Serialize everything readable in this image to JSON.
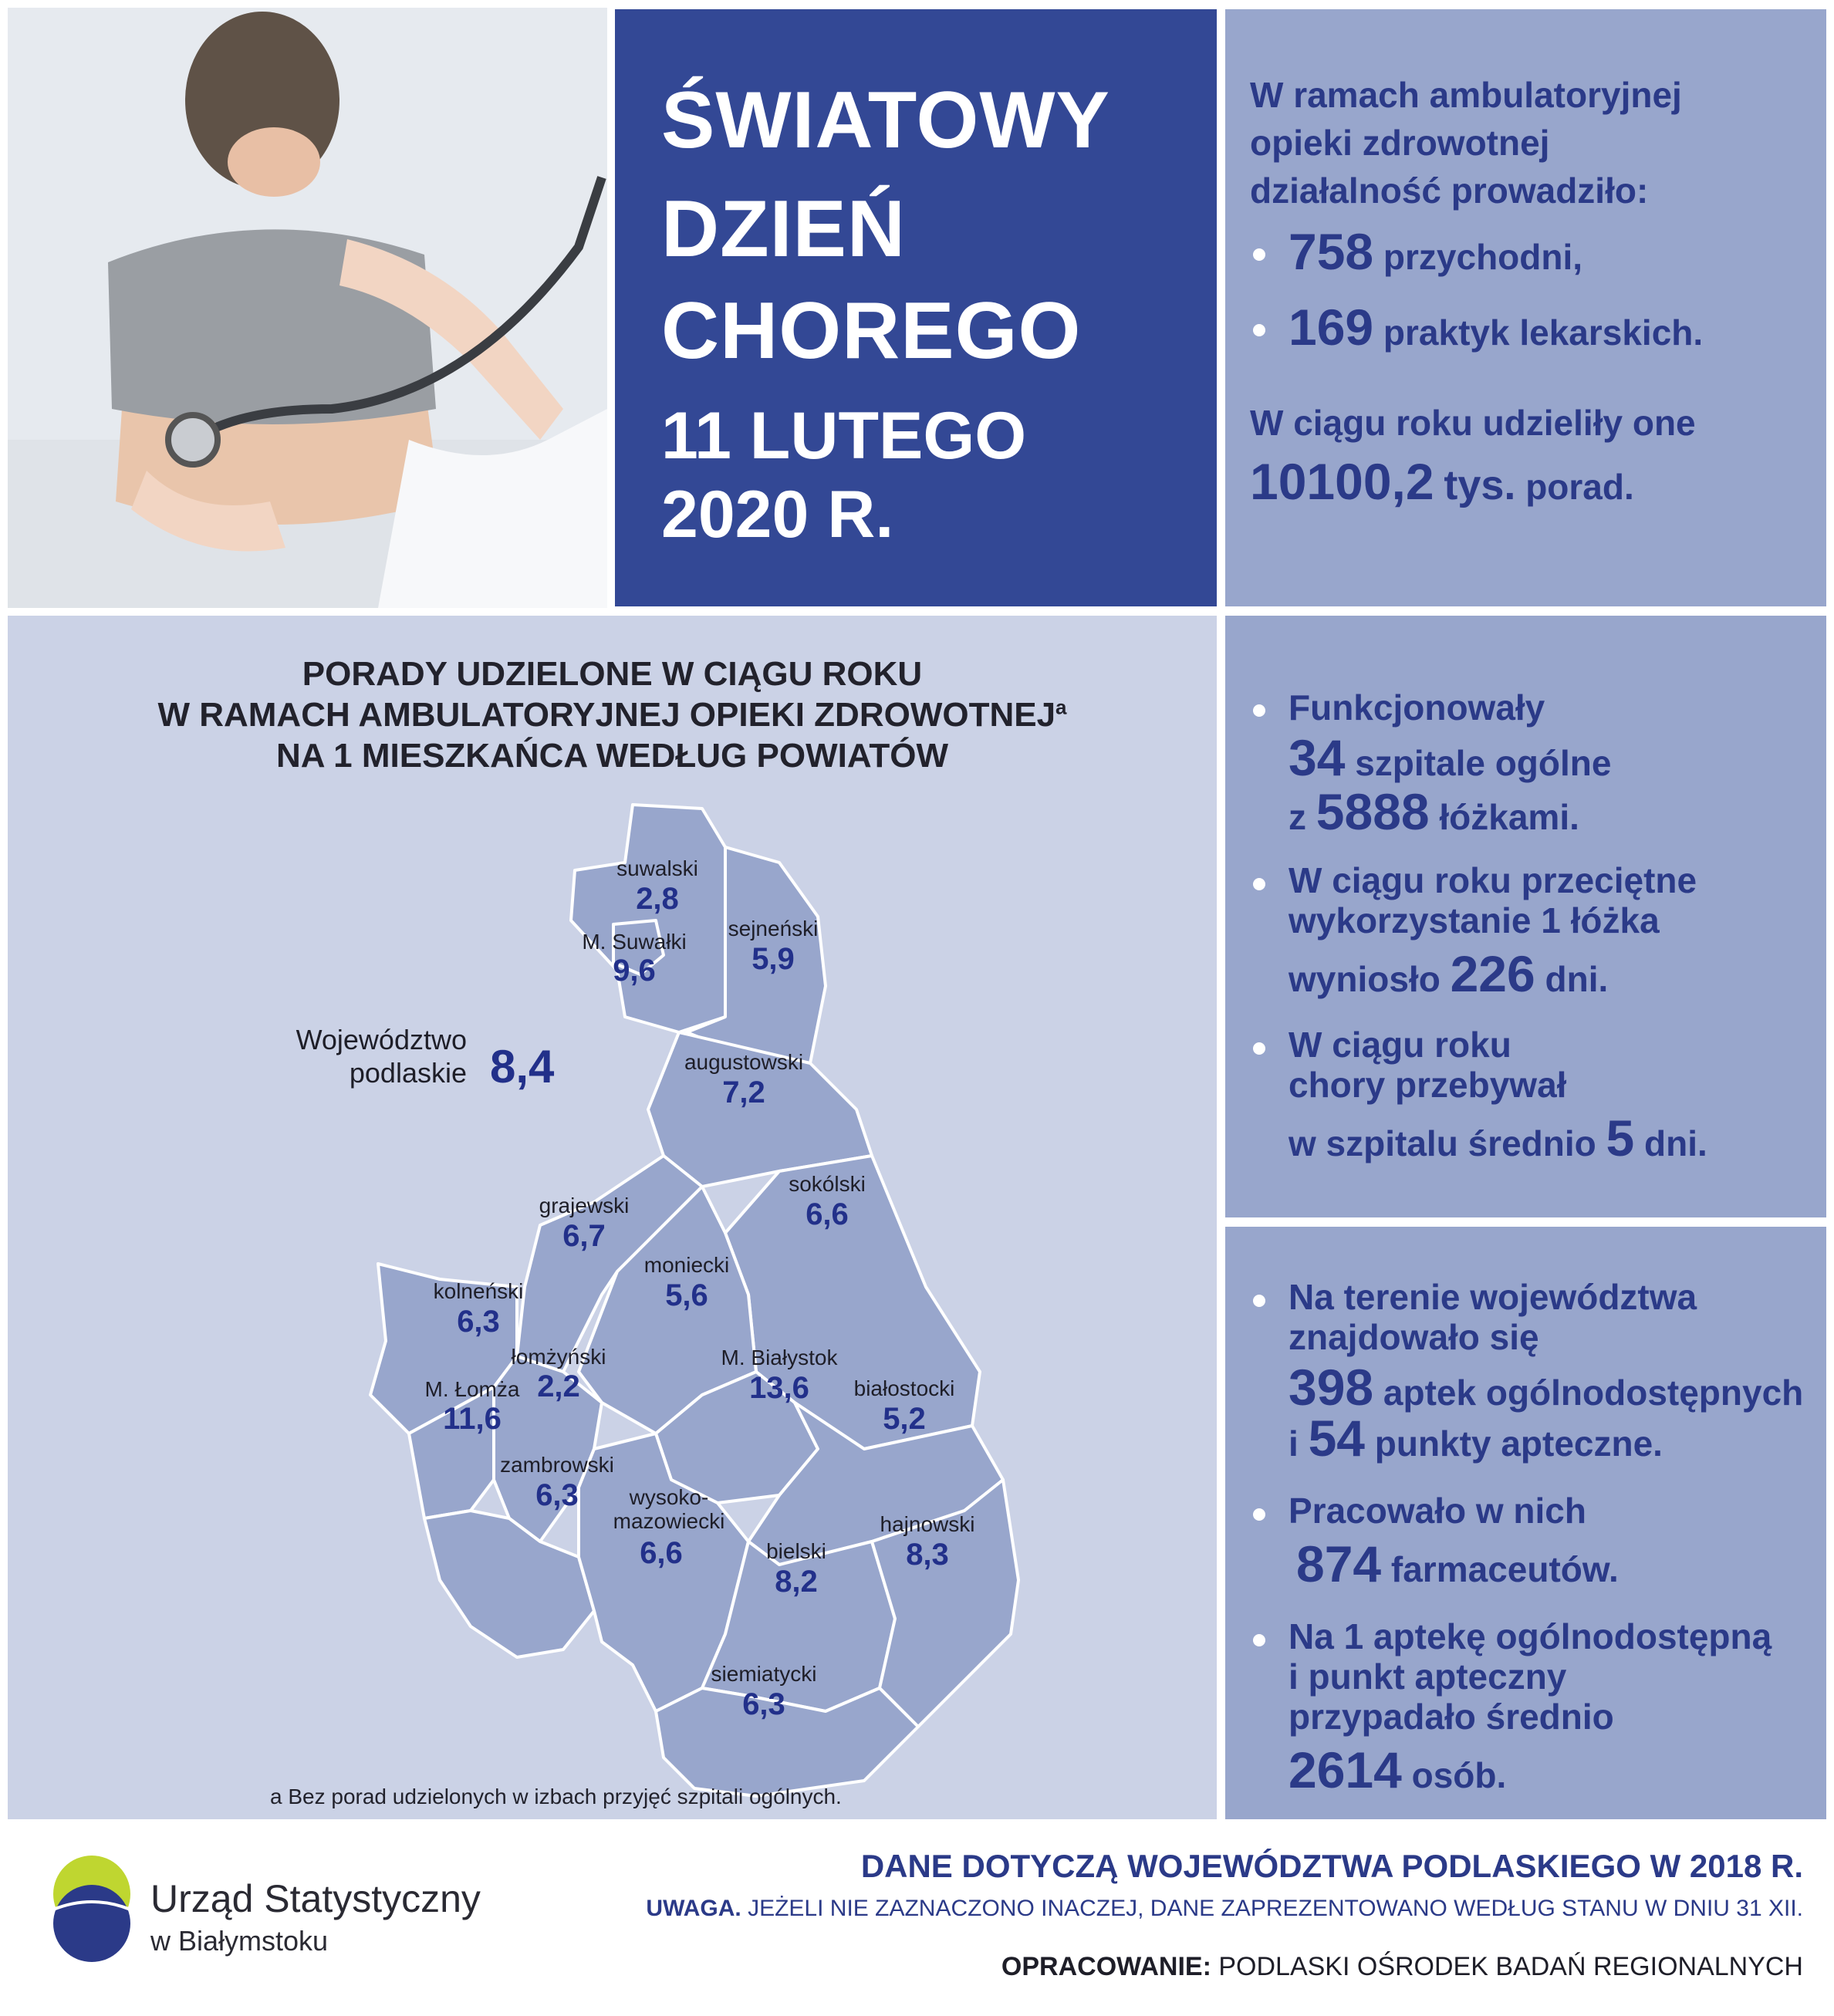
{
  "header": {
    "title_lines": [
      "ŚWIATOWY",
      "DZIEŃ",
      "CHOREGO"
    ],
    "date_lines": [
      "11 LUTEGO",
      "2020 R."
    ]
  },
  "info_top": {
    "intro_lines": [
      "W ramach ambulatoryjnej",
      "opieki zdrowotnej",
      "działalność prowadziło:"
    ],
    "items": [
      {
        "value": "758",
        "text": "przychodni,"
      },
      {
        "value": "169",
        "text": "praktyk lekarskich."
      }
    ],
    "summary_line": "W ciągu roku udzieliły one",
    "summary_value": "10100,2",
    "summary_unit": "tys.",
    "summary_text": "porad."
  },
  "map": {
    "title_lines": [
      "PORADY UDZIELONE W CIĄGU ROKU",
      "W RAMACH AMBULATORYJNEJ OPIEKI ZDROWOTNEJ",
      "NA 1 MIESZKAŃCA WEDŁUG POWIATÓW"
    ],
    "title_superscript": "a",
    "voivodeship_label_lines": [
      "Województwo",
      "podlaskie"
    ],
    "voivodeship_value": "8,4",
    "footnote": "a Bez porad udzielonych w izbach przyjęć szpitali ogólnych.",
    "districts": [
      {
        "name": "suwalski",
        "value": "2,8"
      },
      {
        "name": "sejneński",
        "value": "5,9"
      },
      {
        "name": "M. Suwałki",
        "value": "9,6"
      },
      {
        "name": "augustowski",
        "value": "7,2"
      },
      {
        "name": "sokólski",
        "value": "6,6"
      },
      {
        "name": "grajewski",
        "value": "6,7"
      },
      {
        "name": "moniecki",
        "value": "5,6"
      },
      {
        "name": "kolneński",
        "value": "6,3"
      },
      {
        "name": "łomżyński",
        "value": "2,2"
      },
      {
        "name": "M. Łomża",
        "value": "11,6"
      },
      {
        "name": "M. Białystok",
        "value": "13,6"
      },
      {
        "name": "białostocki",
        "value": "5,2"
      },
      {
        "name": "zambrowski",
        "value": "6,3"
      },
      {
        "name": "wysoko-",
        "name2": "mazowiecki",
        "value": "6,6"
      },
      {
        "name": "bielski",
        "value": "8,2"
      },
      {
        "name": "hajnowski",
        "value": "8,3"
      },
      {
        "name": "siemiatycki",
        "value": "6,3"
      }
    ]
  },
  "info_mid": {
    "b1_line1": "Funkcjonowały",
    "b1_v1": "34",
    "b1_t1": "szpitale ogólne",
    "b1_pre": "z",
    "b1_v2": "5888",
    "b1_t2": "łóżkami.",
    "b2_line1": "W ciągu roku przeciętne",
    "b2_line2": "wykorzystanie 1 łóżka",
    "b2_pre": "wyniosło",
    "b2_v": "226",
    "b2_t": "dni.",
    "b3_line1": "W ciągu roku",
    "b3_line2": "chory przebywał",
    "b3_pre": "w szpitalu średnio",
    "b3_v": "5",
    "b3_t": "dni."
  },
  "info_bot": {
    "b1_line1": "Na terenie województwa",
    "b1_line2": "znajdowało się",
    "b1_v1": "398",
    "b1_t1": "aptek ogólnodostępnych",
    "b1_pre": "i",
    "b1_v2": "54",
    "b1_t2": "punkty apteczne.",
    "b2_line1": "Pracowało w nich",
    "b2_v": "874",
    "b2_t": "farmaceutów.",
    "b3_line1": "Na 1 aptekę ogólnodostępną",
    "b3_line2": "i punkt apteczny",
    "b3_line3": "przypadało średnio",
    "b3_v": "2614",
    "b3_t": "osób."
  },
  "footer": {
    "logo_line1": "Urząd Statystyczny",
    "logo_line2": "w Białymstoku",
    "data_note": "DANE DOTYCZĄ WOJEWÓDZTWA PODLASKIEGO W 2018 R.",
    "uwaga_label": "UWAGA.",
    "uwaga_text": "JEŻELI NIE ZAZNACZONO INACZEJ, DANE ZAPREZENTOWANO WEDŁUG STANU W DNIU 31 XII.",
    "credit_label": "OPRACOWANIE:",
    "credit_text": "PODLASKI OŚRODEK BADAŃ REGIONALNYCH"
  },
  "colors": {
    "title_panel": "#334895",
    "info_panel": "#98a6cc",
    "map_background": "#cbd2e6",
    "district_fill": "#98a6cc",
    "value_text": "#22308a"
  }
}
